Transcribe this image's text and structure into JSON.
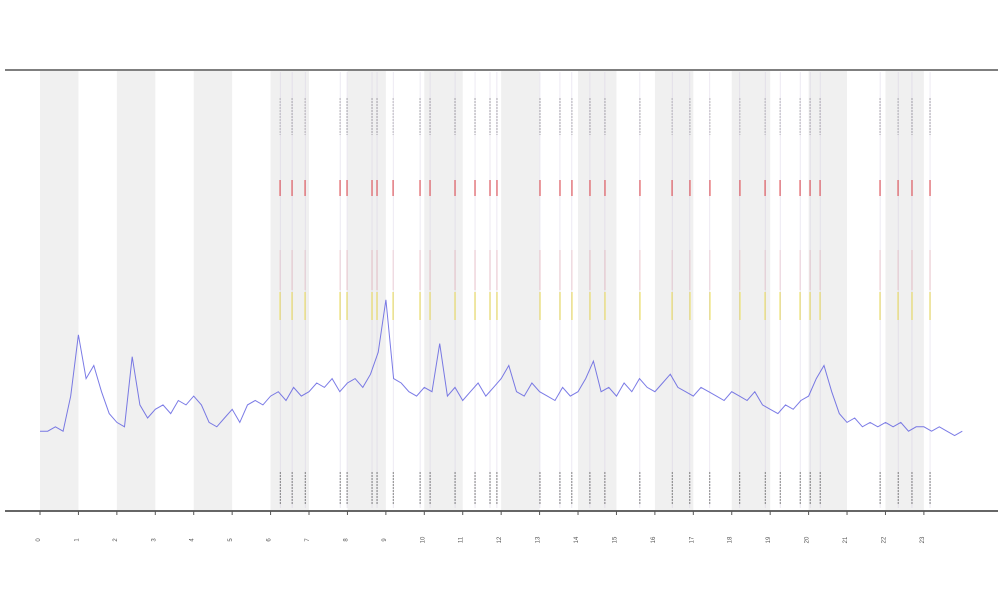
{
  "chart_data": {
    "type": "line",
    "x": [
      0,
      0.2,
      0.4,
      0.6,
      0.8,
      1,
      1.2,
      1.4,
      1.6,
      1.8,
      2,
      2.2,
      2.4,
      2.6,
      2.8,
      3,
      3.2,
      3.4,
      3.6,
      3.8,
      4,
      4.2,
      4.4,
      4.6,
      4.8,
      5,
      5.2,
      5.4,
      5.6,
      5.8,
      6,
      6.2,
      6.4,
      6.6,
      6.8,
      7,
      7.2,
      7.4,
      7.6,
      7.8,
      8,
      8.2,
      8.4,
      8.6,
      8.8,
      9,
      9.2,
      9.4,
      9.6,
      9.8,
      10,
      10.2,
      10.4,
      10.6,
      10.8,
      11,
      11.2,
      11.4,
      11.6,
      11.8,
      12,
      12.2,
      12.4,
      12.6,
      12.8,
      13,
      13.2,
      13.4,
      13.6,
      13.8,
      14,
      14.2,
      14.4,
      14.6,
      14.8,
      15,
      15.2,
      15.4,
      15.6,
      15.8,
      16,
      16.2,
      16.4,
      16.6,
      16.8,
      17,
      17.2,
      17.4,
      17.6,
      17.8,
      18,
      18.2,
      18.4,
      18.6,
      18.8,
      19,
      19.2,
      19.4,
      19.6,
      19.8,
      20,
      20.2,
      20.4,
      20.6,
      20.8,
      21,
      21.2,
      21.4,
      21.6,
      21.8,
      22,
      22.2,
      22.4,
      22.6,
      22.8,
      23,
      23.2,
      23.4,
      23.6,
      23.8,
      24
    ],
    "series": [
      {
        "color": "#5a5ae0",
        "values": [
          18,
          18,
          19,
          18,
          26,
          40,
          30,
          33,
          27,
          22,
          20,
          19,
          35,
          24,
          21,
          23,
          24,
          22,
          25,
          24,
          26,
          24,
          20,
          19,
          21,
          23,
          20,
          24,
          25,
          24,
          26,
          27,
          25,
          28,
          26,
          27,
          29,
          28,
          30,
          27,
          29,
          30,
          28,
          31,
          36,
          48,
          30,
          29,
          27,
          26,
          28,
          27,
          38,
          26,
          28,
          25,
          27,
          29,
          26,
          28,
          30,
          33,
          27,
          26,
          29,
          27,
          26,
          25,
          28,
          26,
          27,
          30,
          34,
          27,
          28,
          26,
          29,
          27,
          30,
          28,
          27,
          29,
          31,
          28,
          27,
          26,
          28,
          27,
          26,
          25,
          27,
          26,
          25,
          27,
          24,
          23,
          22,
          24,
          23,
          25,
          26,
          30,
          33,
          27,
          22,
          20,
          21,
          19,
          20,
          19,
          20,
          19,
          20,
          18,
          19,
          19,
          18,
          19,
          18,
          17,
          18
        ]
      }
    ],
    "events": [
      6.25,
      6.56,
      6.9,
      7.81,
      7.99,
      8.64,
      8.77,
      9.19,
      9.89,
      10.15,
      10.8,
      11.32,
      11.71,
      11.89,
      13.01,
      13.53,
      13.84,
      14.31,
      14.7,
      15.61,
      16.45,
      16.91,
      17.43,
      18.21,
      18.87,
      19.26,
      19.78,
      20.04,
      20.3,
      21.86,
      22.33,
      22.69,
      23.16
    ],
    "event_color": "#333333",
    "alert_color": "#e02020",
    "warn_color": "#f0e040",
    "xlim": [
      0,
      24.8
    ],
    "ylim": [
      0,
      100
    ],
    "xticks": [
      0,
      1,
      2,
      3,
      4,
      5,
      6,
      7,
      8,
      9,
      10,
      11,
      12,
      13,
      14,
      15,
      16,
      17,
      18,
      19,
      20,
      21,
      22,
      23
    ],
    "shade_alternate": true
  }
}
